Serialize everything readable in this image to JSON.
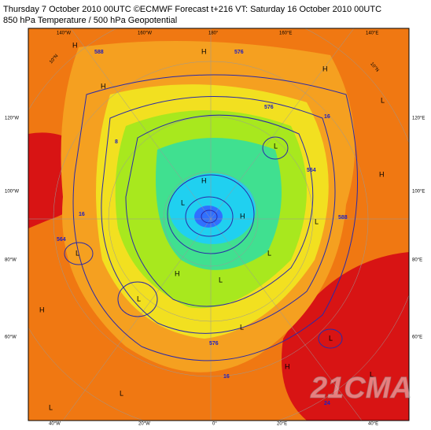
{
  "header": {
    "line1": "Thursday 7 October 2010 00UTC ©ECMWF Forecast t+216 VT: Saturday 16 October 2010 00UTC",
    "line2": "850 hPa Temperature / 500 hPa Geopotential"
  },
  "top_labels": [
    "140°W",
    "160°W",
    "180°",
    "160°E",
    "140°E"
  ],
  "left_labels": [
    "120°W",
    "100°W",
    "80°W",
    "60°W"
  ],
  "right_labels": [
    "120°E",
    "100°E",
    "80°E",
    "60°E"
  ],
  "bottom_labels": [
    "40°W",
    "20°W",
    "0°",
    "20°E",
    "40°E"
  ],
  "lat_labels": [
    "10°N",
    "10°N"
  ],
  "pressure_centers": [
    "H",
    "H",
    "H",
    "H",
    "L",
    "L",
    "L",
    "L",
    "H",
    "L",
    "H",
    "L",
    "L",
    "H",
    "L",
    "L",
    "H",
    "L",
    "H",
    "L",
    "L",
    "H",
    "L"
  ],
  "contour_labels": [
    "576",
    "588",
    "564",
    "16",
    "8",
    "16",
    "564",
    "576",
    "588",
    "576",
    "16",
    "24"
  ],
  "watermark": "21CMA"
}
